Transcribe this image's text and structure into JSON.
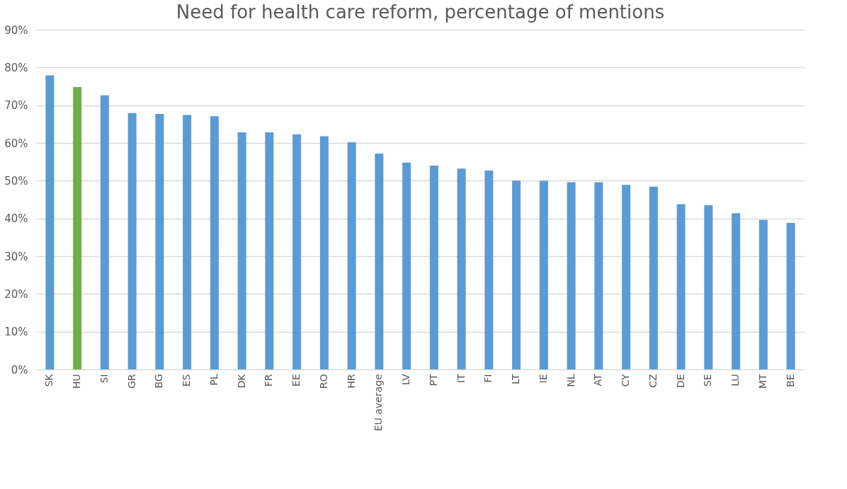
{
  "chart_data": {
    "type": "bar",
    "title": "Need for health care reform, percentage of mentions",
    "categories": [
      "SK",
      "HU",
      "SI",
      "GR",
      "BG",
      "ES",
      "PL",
      "DK",
      "FR",
      "EE",
      "RO",
      "HR",
      "EU average",
      "LV",
      "PT",
      "IT",
      "FI",
      "LT",
      "IE",
      "NL",
      "AT",
      "CY",
      "CZ",
      "DE",
      "SE",
      "LU",
      "MT",
      "BE"
    ],
    "values": [
      77.9,
      74.8,
      72.6,
      67.9,
      67.7,
      67.4,
      67.1,
      62.8,
      62.8,
      62.3,
      61.8,
      60.2,
      57.2,
      54.8,
      54.0,
      53.2,
      52.7,
      50.0,
      50.0,
      49.6,
      49.6,
      48.9,
      48.4,
      43.8,
      43.5,
      41.4,
      39.6,
      38.8
    ],
    "colors": [
      "#5b9bd5",
      "#70ad47",
      "#5b9bd5",
      "#5b9bd5",
      "#5b9bd5",
      "#5b9bd5",
      "#5b9bd5",
      "#5b9bd5",
      "#5b9bd5",
      "#5b9bd5",
      "#5b9bd5",
      "#5b9bd5",
      "#5b9bd5",
      "#5b9bd5",
      "#5b9bd5",
      "#5b9bd5",
      "#5b9bd5",
      "#5b9bd5",
      "#5b9bd5",
      "#5b9bd5",
      "#5b9bd5",
      "#5b9bd5",
      "#5b9bd5",
      "#5b9bd5",
      "#5b9bd5",
      "#5b9bd5",
      "#5b9bd5",
      "#5b9bd5"
    ],
    "ylim": [
      0,
      90
    ],
    "yticks": [
      {
        "value": 0,
        "label": "0%"
      },
      {
        "value": 10,
        "label": "10%"
      },
      {
        "value": 20,
        "label": "20%"
      },
      {
        "value": 30,
        "label": "30%"
      },
      {
        "value": 40,
        "label": "40%"
      },
      {
        "value": 50,
        "label": "50%"
      },
      {
        "value": 60,
        "label": "60%"
      },
      {
        "value": 70,
        "label": "70%"
      },
      {
        "value": 80,
        "label": "80%"
      },
      {
        "value": 90,
        "label": "90%"
      }
    ],
    "grid": "y"
  }
}
